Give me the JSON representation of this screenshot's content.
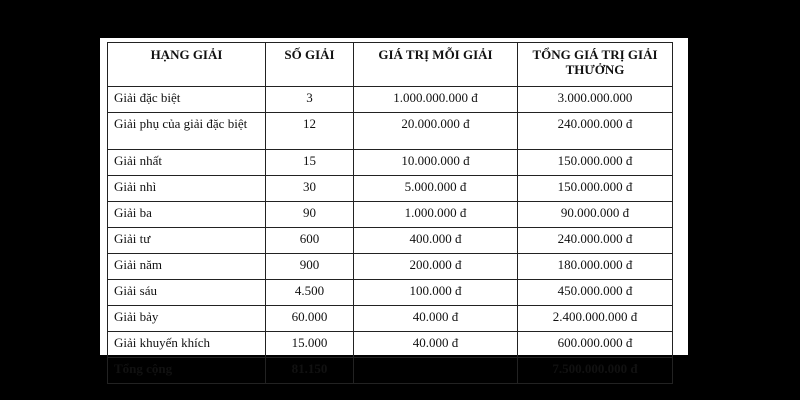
{
  "table": {
    "header": [
      "HẠNG GIẢI",
      "SỐ GIẢI",
      "GIÁ TRỊ MỖI GIẢI",
      "TỔNG GIÁ TRỊ GIẢI THƯỞNG"
    ],
    "rows": [
      [
        "Giải đặc biệt",
        "3",
        "1.000.000.000 đ",
        "3.000.000.000"
      ],
      [
        "Giải phụ của giải đặc biệt",
        "12",
        "20.000.000 đ",
        "240.000.000 đ"
      ],
      [
        "Giải nhất",
        "15",
        "10.000.000 đ",
        "150.000.000 đ"
      ],
      [
        "Giải nhì",
        "30",
        "5.000.000 đ",
        "150.000.000 đ"
      ],
      [
        "Giải ba",
        "90",
        "1.000.000 đ",
        "90.000.000 đ"
      ],
      [
        "Giải tư",
        "600",
        "400.000 đ",
        "240.000.000 đ"
      ],
      [
        "Giải năm",
        "900",
        "200.000 đ",
        "180.000.000 đ"
      ],
      [
        "Giải sáu",
        "4.500",
        "100.000 đ",
        "450.000.000 đ"
      ],
      [
        "Giải bảy",
        "60.000",
        "40.000 đ",
        "2.400.000.000 đ"
      ],
      [
        "Giải khuyến khích",
        "15.000",
        "40.000 đ",
        "600.000.000 đ"
      ]
    ],
    "total": {
      "label": "Tổng cộng",
      "count": "81.150",
      "amount": "7.500.000.000 đ"
    }
  }
}
